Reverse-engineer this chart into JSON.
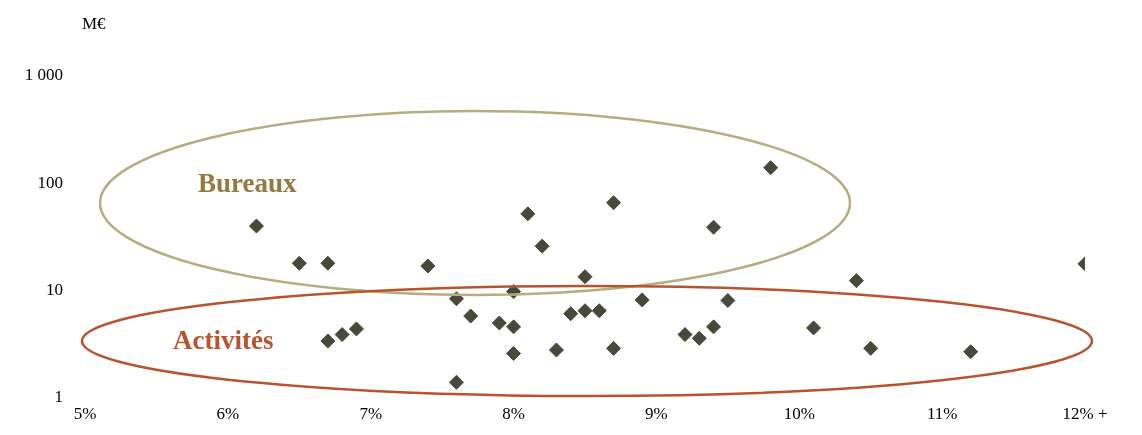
{
  "chart_data": {
    "type": "scatter",
    "ylabel": "M€",
    "annotations": [
      "Bureaux",
      "Activités"
    ],
    "xlim": [
      5,
      12
    ],
    "xticks": [
      {
        "value": 5,
        "label": "5%"
      },
      {
        "value": 6,
        "label": "6%"
      },
      {
        "value": 7,
        "label": "7%"
      },
      {
        "value": 8,
        "label": "8%"
      },
      {
        "value": 9,
        "label": "9%"
      },
      {
        "value": 10,
        "label": "10%"
      },
      {
        "value": 11,
        "label": "11%"
      },
      {
        "value": 12,
        "label": "12% +"
      }
    ],
    "ylim": [
      1,
      1000
    ],
    "yticks": [
      1,
      10,
      100,
      {
        "value": 1000,
        "label": "1 000"
      }
    ],
    "log": "y",
    "grid": false,
    "legend": false,
    "marker": "diamond",
    "series": [
      {
        "color": "#464a3a",
        "x": [
          6.2,
          6.5,
          6.7,
          7.4,
          6.7,
          6.8,
          6.9,
          7.6,
          7.7,
          7.9,
          8.0,
          8.0,
          8.0,
          7.6,
          8.1,
          8.2,
          8.3,
          8.4,
          8.5,
          8.5,
          8.6,
          8.7,
          8.7,
          8.9,
          9.2,
          9.3,
          9.4,
          9.4,
          9.5,
          9.8,
          10.1,
          10.4,
          10.5,
          11.2,
          12.0
        ],
        "values": [
          40,
          18,
          18,
          17,
          3.4,
          3.9,
          4.4,
          8.4,
          5.8,
          5.0,
          4.6,
          9.8,
          2.6,
          1.4,
          52,
          26,
          2.8,
          6.1,
          13.5,
          6.5,
          6.5,
          66,
          2.9,
          8.2,
          3.9,
          3.6,
          4.6,
          39,
          8.1,
          140,
          4.5,
          12.4,
          2.9,
          2.7,
          17.8
        ]
      }
    ]
  }
}
